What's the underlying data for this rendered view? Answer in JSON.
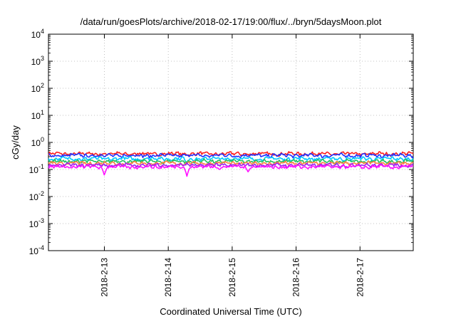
{
  "chart_data": {
    "type": "line",
    "title": "/data/run/goesPlots/archive/2018-02-17/19:00/flux/../bryn/5daysMoon.plot",
    "xlabel": "Coordinated Universal Time (UTC)",
    "ylabel": "cGy/day",
    "yscale": "log",
    "ylim": [
      0.0001,
      10000
    ],
    "xlim": [
      "2018-02-12 03:00",
      "2018-02-17 20:00"
    ],
    "y_ticks": [
      {
        "base": "10",
        "exp": "4"
      },
      {
        "base": "10",
        "exp": "3"
      },
      {
        "base": "10",
        "exp": "2"
      },
      {
        "base": "10",
        "exp": "1"
      },
      {
        "base": "10",
        "exp": "0"
      },
      {
        "base": "10",
        "exp": "-1"
      },
      {
        "base": "10",
        "exp": "-2"
      },
      {
        "base": "10",
        "exp": "-3"
      },
      {
        "base": "10",
        "exp": "-4"
      }
    ],
    "x_ticks": [
      "2018-2-13",
      "2018-2-14",
      "2018-2-15",
      "2018-2-16",
      "2018-2-17"
    ],
    "grid": true,
    "legend": "none",
    "series": [
      {
        "color": "#ff2020",
        "level": 0.38,
        "dips": []
      },
      {
        "color": "#2030ff",
        "level": 0.33,
        "dips": []
      },
      {
        "color": "#00c8ff",
        "level": 0.25,
        "dips": [
          {
            "x": "2018-02-14 07:00",
            "y": 0.17
          }
        ]
      },
      {
        "color": "#20c060",
        "level": 0.2,
        "dips": []
      },
      {
        "color": "#ff8040",
        "level": 0.17,
        "dips": []
      },
      {
        "color": "#a020f0",
        "level": 0.145,
        "dips": []
      },
      {
        "color": "#ff10ff",
        "level": 0.125,
        "dips": [
          {
            "x": "2018-02-13 00:00",
            "y": 0.06
          },
          {
            "x": "2018-02-14 07:00",
            "y": 0.055
          },
          {
            "x": "2018-02-15 06:00",
            "y": 0.08
          }
        ]
      }
    ]
  }
}
